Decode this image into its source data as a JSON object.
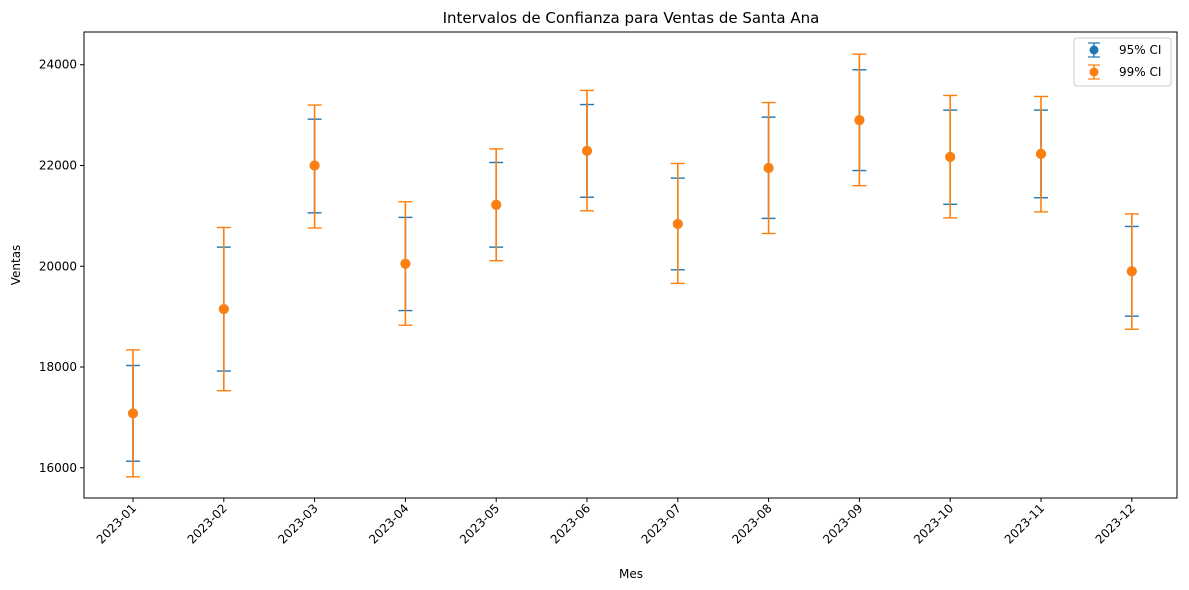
{
  "chart_data": {
    "type": "scatter",
    "title": "Intervalos de Confianza para Ventas de Santa Ana",
    "xlabel": "Mes",
    "ylabel": "Ventas",
    "categories": [
      "2023-01",
      "2023-02",
      "2023-03",
      "2023-04",
      "2023-05",
      "2023-06",
      "2023-07",
      "2023-08",
      "2023-09",
      "2023-10",
      "2023-11",
      "2023-12"
    ],
    "yticks": [
      16000,
      18000,
      20000,
      22000,
      24000
    ],
    "ylim": [
      15400,
      24650
    ],
    "grid": false,
    "legend_position": "top-right",
    "series": [
      {
        "name": "95% CI",
        "color": "#1f77b4",
        "values": [
          17080,
          19150,
          22000,
          20050,
          21220,
          22290,
          20840,
          21950,
          22900,
          22170,
          22230,
          19900
        ],
        "lower": [
          16130,
          17920,
          21060,
          19120,
          20380,
          21370,
          19930,
          20950,
          21900,
          21230,
          21360,
          19010
        ],
        "upper": [
          18030,
          20380,
          22920,
          20970,
          22060,
          23210,
          21750,
          22960,
          23900,
          23100,
          23100,
          20790
        ]
      },
      {
        "name": "99% CI",
        "color": "#ff7f0e",
        "values": [
          17080,
          19150,
          22000,
          20050,
          21220,
          22290,
          20840,
          21950,
          22900,
          22170,
          22230,
          19900
        ],
        "lower": [
          15820,
          17530,
          20760,
          18830,
          20110,
          21100,
          19660,
          20650,
          21600,
          20960,
          21080,
          18750
        ],
        "upper": [
          18340,
          20770,
          23200,
          21280,
          22330,
          23490,
          22040,
          23250,
          24210,
          23390,
          23370,
          21040
        ]
      }
    ]
  }
}
